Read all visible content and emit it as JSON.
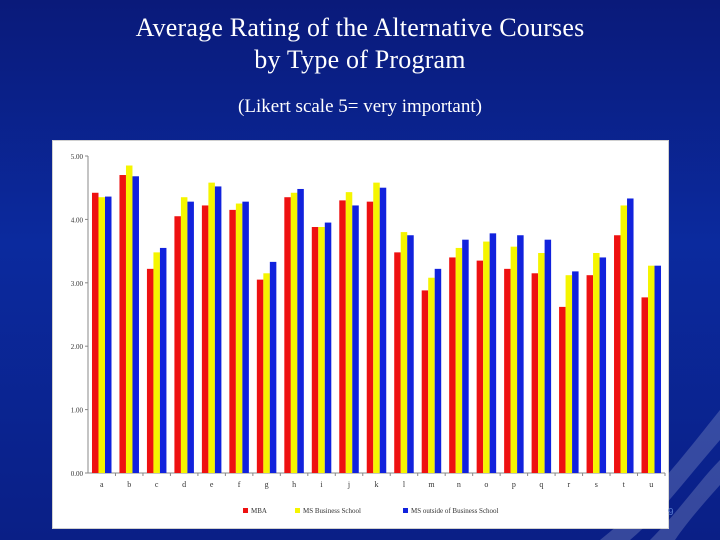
{
  "slide": {
    "title_line1": "Average Rating of the Alternative Courses",
    "title_line2": "by Type of Program",
    "subtitle": "(Likert scale 5= very important)",
    "slide_number": "9"
  },
  "chart_data": {
    "type": "bar",
    "title": "",
    "xlabel": "",
    "ylabel": "",
    "ylim": [
      0,
      5
    ],
    "yticks": [
      "0.00",
      "1.00",
      "2.00",
      "3.00",
      "4.00",
      "5.00"
    ],
    "categories": [
      "a",
      "b",
      "c",
      "d",
      "e",
      "f",
      "g",
      "h",
      "i",
      "j",
      "k",
      "l",
      "m",
      "n",
      "o",
      "p",
      "q",
      "r",
      "s",
      "t",
      "u"
    ],
    "series": [
      {
        "name": "MBA",
        "color": "#ee1111",
        "values": [
          4.42,
          4.7,
          3.22,
          4.05,
          4.22,
          4.15,
          3.05,
          4.35,
          3.88,
          4.3,
          4.28,
          3.48,
          2.88,
          3.4,
          3.35,
          3.22,
          3.15,
          2.62,
          3.12,
          3.75,
          2.77
        ]
      },
      {
        "name": "MS Business School",
        "color": "#f5f500",
        "values": [
          4.35,
          4.85,
          3.48,
          4.35,
          4.58,
          4.25,
          3.15,
          4.42,
          3.88,
          4.43,
          4.58,
          3.8,
          3.08,
          3.55,
          3.65,
          3.57,
          3.47,
          3.12,
          3.47,
          4.22,
          3.27
        ]
      },
      {
        "name": "MS outside of Business School",
        "color": "#1122dd",
        "values": [
          4.36,
          4.68,
          3.55,
          4.28,
          4.52,
          4.28,
          3.33,
          4.48,
          3.95,
          4.22,
          4.5,
          3.75,
          3.22,
          3.68,
          3.78,
          3.75,
          3.68,
          3.18,
          3.4,
          4.33,
          3.27
        ]
      }
    ],
    "grid": false,
    "legend_position": "bottom"
  }
}
